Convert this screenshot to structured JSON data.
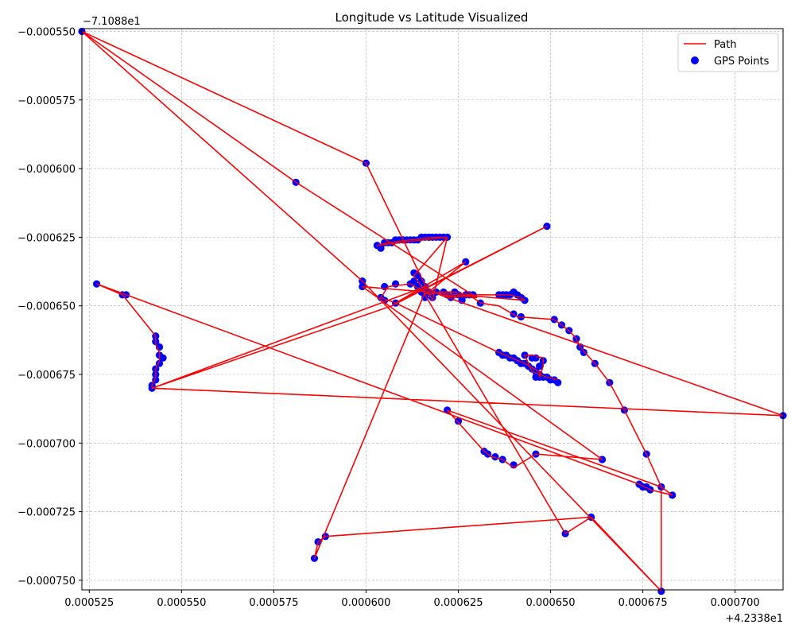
{
  "chart_data": {
    "type": "scatter",
    "title": "Longitude vs Latitude Visualized",
    "xlabel": "",
    "ylabel": "",
    "x_offset_label": "+4.2338e1",
    "y_offset_label": "−7.1088e1",
    "x_offset": 42.338,
    "y_offset": -71.088,
    "xlim": [
      0.000523,
      0.000713
    ],
    "ylim": [
      -0.0007535,
      -0.000549
    ],
    "x_ticks": [
      0.000525,
      0.00055,
      0.000575,
      0.0006,
      0.000625,
      0.00065,
      0.000675,
      0.0007
    ],
    "x_tick_labels": [
      "0.000525",
      "0.000550",
      "0.000575",
      "0.000600",
      "0.000625",
      "0.000650",
      "0.000675",
      "0.000700"
    ],
    "y_ticks": [
      -0.00055,
      -0.000575,
      -0.0006,
      -0.000625,
      -0.00065,
      -0.000675,
      -0.0007,
      -0.000725,
      -0.00075
    ],
    "y_tick_labels": [
      "−0.000550",
      "−0.000575",
      "−0.000600",
      "−0.000625",
      "−0.000650",
      "−0.000675",
      "−0.000700",
      "−0.000725",
      "−0.000750"
    ],
    "grid": true,
    "legend_position": "upper-right",
    "legend": [
      {
        "label": "Path",
        "kind": "line",
        "color": "#ff0000"
      },
      {
        "label": "GPS Points",
        "kind": "marker",
        "color": "#0000ff"
      }
    ],
    "series": [
      {
        "name": "Path",
        "color": "#ff0000",
        "points": [
          [
            0.000523,
            -0.00055
          ],
          [
            0.0006,
            -0.000598
          ],
          [
            0.000618,
            -0.000648
          ],
          [
            0.000622,
            -0.000625
          ],
          [
            0.000603,
            -0.000628
          ],
          [
            0.000606,
            -0.000627
          ],
          [
            0.000612,
            -0.000626
          ],
          [
            0.000618,
            -0.000625
          ],
          [
            0.000622,
            -0.000625
          ],
          [
            0.000613,
            -0.000639
          ],
          [
            0.000614,
            -0.000641
          ],
          [
            0.000615,
            -0.000643
          ],
          [
            0.000617,
            -0.000646
          ],
          [
            0.00062,
            -0.000645
          ],
          [
            0.000624,
            -0.000645
          ],
          [
            0.000628,
            -0.000646
          ],
          [
            0.000631,
            -0.000649
          ],
          [
            0.000636,
            -0.00065
          ],
          [
            0.000641,
            -0.000654
          ],
          [
            0.000651,
            -0.000655
          ],
          [
            0.000653,
            -0.000657
          ],
          [
            0.000655,
            -0.000659
          ],
          [
            0.000657,
            -0.000662
          ],
          [
            0.000658,
            -0.000665
          ],
          [
            0.000662,
            -0.000671
          ],
          [
            0.000666,
            -0.000678
          ],
          [
            0.00067,
            -0.000688
          ],
          [
            0.000676,
            -0.000704
          ],
          [
            0.00068,
            -0.000716
          ],
          [
            0.000683,
            -0.000719
          ],
          [
            0.000677,
            -0.000717
          ],
          [
            0.000674,
            -0.000715
          ],
          [
            0.000527,
            -0.000642
          ],
          [
            0.000534,
            -0.000646
          ],
          [
            0.000543,
            -0.000661
          ],
          [
            0.000543,
            -0.000664
          ],
          [
            0.000544,
            -0.000667
          ],
          [
            0.000544,
            -0.00067
          ],
          [
            0.000543,
            -0.000673
          ],
          [
            0.000543,
            -0.000676
          ],
          [
            0.000542,
            -0.000679
          ],
          [
            0.000542,
            -0.00068
          ],
          [
            0.000616,
            -0.000643
          ],
          [
            0.00062,
            -0.000646
          ],
          [
            0.000624,
            -0.000647
          ],
          [
            0.000628,
            -0.000646
          ],
          [
            0.000636,
            -0.000646
          ],
          [
            0.000639,
            -0.000646
          ],
          [
            0.000642,
            -0.000647
          ],
          [
            0.000643,
            -0.000648
          ],
          [
            0.000599,
            -0.000643
          ],
          [
            0.000664,
            -0.000706
          ],
          [
            0.000646,
            -0.000704
          ],
          [
            0.00064,
            -0.000709
          ],
          [
            0.000637,
            -0.000706
          ],
          [
            0.000634,
            -0.000705
          ],
          [
            0.000632,
            -0.000703
          ],
          [
            0.000622,
            -0.000688
          ],
          [
            0.00068,
            -0.000716
          ],
          [
            0.00068,
            -0.000754
          ],
          [
            0.000661,
            -0.000727
          ],
          [
            0.000589,
            -0.000734
          ],
          [
            0.000587,
            -0.000736
          ],
          [
            0.000586,
            -0.000742
          ],
          [
            0.000616,
            -0.000645
          ],
          [
            0.000612,
            -0.000642
          ],
          [
            0.000606,
            -0.000643
          ],
          [
            0.000604,
            -0.000647
          ],
          [
            0.000608,
            -0.000649
          ],
          [
            0.000649,
            -0.000621
          ],
          [
            0.000607,
            -0.00065
          ],
          [
            0.000542,
            -0.00068
          ],
          [
            0.000713,
            -0.00069
          ],
          [
            0.00062,
            -0.000646
          ],
          [
            0.00063,
            -0.000647
          ],
          [
            0.000581,
            -0.000605
          ],
          [
            0.000523,
            -0.00055
          ],
          [
            0.000599,
            -0.000641
          ],
          [
            0.00068,
            -0.000754
          ],
          [
            0.000661,
            -0.000727
          ],
          [
            0.000654,
            -0.000733
          ],
          [
            0.000616,
            -0.000646
          ],
          [
            0.000627,
            -0.000634
          ],
          [
            0.000608,
            -0.000649
          ],
          [
            0.000636,
            -0.000667
          ],
          [
            0.000643,
            -0.000671
          ],
          [
            0.000647,
            -0.000674
          ],
          [
            0.000647,
            -0.000676
          ],
          [
            0.000648,
            -0.000672
          ],
          [
            0.000648,
            -0.000669
          ],
          [
            0.000645,
            -0.000668
          ],
          [
            0.000643,
            -0.000668
          ],
          [
            0.000645,
            -0.000674
          ],
          [
            0.000649,
            -0.000676
          ],
          [
            0.000652,
            -0.000677
          ]
        ]
      },
      {
        "name": "GPS Points",
        "color": "#0000ff",
        "points": [
          [
            0.000523,
            -0.00055
          ],
          [
            0.0006,
            -0.000598
          ],
          [
            0.000581,
            -0.000605
          ],
          [
            0.000649,
            -0.000621
          ],
          [
            0.000603,
            -0.000628
          ],
          [
            0.000604,
            -0.000629
          ],
          [
            0.000605,
            -0.000627
          ],
          [
            0.000606,
            -0.000627
          ],
          [
            0.000607,
            -0.000627
          ],
          [
            0.000608,
            -0.000626
          ],
          [
            0.000609,
            -0.000626
          ],
          [
            0.00061,
            -0.000626
          ],
          [
            0.000611,
            -0.000626
          ],
          [
            0.000612,
            -0.000626
          ],
          [
            0.000613,
            -0.000626
          ],
          [
            0.000614,
            -0.000626
          ],
          [
            0.000615,
            -0.000625
          ],
          [
            0.000616,
            -0.000625
          ],
          [
            0.000617,
            -0.000625
          ],
          [
            0.000618,
            -0.000625
          ],
          [
            0.000619,
            -0.000625
          ],
          [
            0.00062,
            -0.000625
          ],
          [
            0.000621,
            -0.000625
          ],
          [
            0.000622,
            -0.000625
          ],
          [
            0.000627,
            -0.000634
          ],
          [
            0.000613,
            -0.000638
          ],
          [
            0.000614,
            -0.000639
          ],
          [
            0.000613,
            -0.000641
          ],
          [
            0.000615,
            -0.000641
          ],
          [
            0.000614,
            -0.000643
          ],
          [
            0.000616,
            -0.000643
          ],
          [
            0.000615,
            -0.000645
          ],
          [
            0.000617,
            -0.000645
          ],
          [
            0.000616,
            -0.000647
          ],
          [
            0.000618,
            -0.000647
          ],
          [
            0.000599,
            -0.000641
          ],
          [
            0.000599,
            -0.000643
          ],
          [
            0.000605,
            -0.000643
          ],
          [
            0.000608,
            -0.000642
          ],
          [
            0.000612,
            -0.000642
          ],
          [
            0.000604,
            -0.000647
          ],
          [
            0.000605,
            -0.000648
          ],
          [
            0.000608,
            -0.000649
          ],
          [
            0.000619,
            -0.000645
          ],
          [
            0.000621,
            -0.000645
          ],
          [
            0.000622,
            -0.000646
          ],
          [
            0.000623,
            -0.000647
          ],
          [
            0.000624,
            -0.000645
          ],
          [
            0.000625,
            -0.000646
          ],
          [
            0.000626,
            -0.000648
          ],
          [
            0.000627,
            -0.000646
          ],
          [
            0.000628,
            -0.000646
          ],
          [
            0.000629,
            -0.000646
          ],
          [
            0.000631,
            -0.000649
          ],
          [
            0.000636,
            -0.000646
          ],
          [
            0.000637,
            -0.000646
          ],
          [
            0.000638,
            -0.000646
          ],
          [
            0.000639,
            -0.000646
          ],
          [
            0.00064,
            -0.000645
          ],
          [
            0.000641,
            -0.000646
          ],
          [
            0.000642,
            -0.000647
          ],
          [
            0.000643,
            -0.000648
          ],
          [
            0.00064,
            -0.000653
          ],
          [
            0.000642,
            -0.000654
          ],
          [
            0.000651,
            -0.000655
          ],
          [
            0.000653,
            -0.000657
          ],
          [
            0.000655,
            -0.000659
          ],
          [
            0.000657,
            -0.000662
          ],
          [
            0.000658,
            -0.000665
          ],
          [
            0.000659,
            -0.000667
          ],
          [
            0.000662,
            -0.000671
          ],
          [
            0.000666,
            -0.000678
          ],
          [
            0.00067,
            -0.000688
          ],
          [
            0.000713,
            -0.00069
          ],
          [
            0.000676,
            -0.000704
          ],
          [
            0.000674,
            -0.000715
          ],
          [
            0.000675,
            -0.000716
          ],
          [
            0.000676,
            -0.000716
          ],
          [
            0.000677,
            -0.000717
          ],
          [
            0.00068,
            -0.000716
          ],
          [
            0.000683,
            -0.000719
          ],
          [
            0.000527,
            -0.000642
          ],
          [
            0.000534,
            -0.000646
          ],
          [
            0.000535,
            -0.000646
          ],
          [
            0.000543,
            -0.000661
          ],
          [
            0.000543,
            -0.000663
          ],
          [
            0.000544,
            -0.000665
          ],
          [
            0.000544,
            -0.000668
          ],
          [
            0.000545,
            -0.000669
          ],
          [
            0.000544,
            -0.000671
          ],
          [
            0.000543,
            -0.000673
          ],
          [
            0.000543,
            -0.000675
          ],
          [
            0.000543,
            -0.000677
          ],
          [
            0.000542,
            -0.000679
          ],
          [
            0.000542,
            -0.00068
          ],
          [
            0.000636,
            -0.000667
          ],
          [
            0.000637,
            -0.000668
          ],
          [
            0.000638,
            -0.000668
          ],
          [
            0.000639,
            -0.000669
          ],
          [
            0.00064,
            -0.000669
          ],
          [
            0.000641,
            -0.00067
          ],
          [
            0.000642,
            -0.000671
          ],
          [
            0.000643,
            -0.000671
          ],
          [
            0.000644,
            -0.000672
          ],
          [
            0.000645,
            -0.000673
          ],
          [
            0.000646,
            -0.000674
          ],
          [
            0.000647,
            -0.000675
          ],
          [
            0.000648,
            -0.000676
          ],
          [
            0.000649,
            -0.000676
          ],
          [
            0.00065,
            -0.000677
          ],
          [
            0.000651,
            -0.000677
          ],
          [
            0.000652,
            -0.000678
          ],
          [
            0.000643,
            -0.000668
          ],
          [
            0.000645,
            -0.000669
          ],
          [
            0.000646,
            -0.000669
          ],
          [
            0.000648,
            -0.00067
          ],
          [
            0.000647,
            -0.000672
          ],
          [
            0.000646,
            -0.000676
          ],
          [
            0.000647,
            -0.000676
          ],
          [
            0.000622,
            -0.000688
          ],
          [
            0.000625,
            -0.000692
          ],
          [
            0.000632,
            -0.000703
          ],
          [
            0.000633,
            -0.000704
          ],
          [
            0.000635,
            -0.000705
          ],
          [
            0.000637,
            -0.000706
          ],
          [
            0.00064,
            -0.000708
          ],
          [
            0.000646,
            -0.000704
          ],
          [
            0.000664,
            -0.000706
          ],
          [
            0.000661,
            -0.000727
          ],
          [
            0.000654,
            -0.000733
          ],
          [
            0.000589,
            -0.000734
          ],
          [
            0.000587,
            -0.000736
          ],
          [
            0.000586,
            -0.000742
          ],
          [
            0.00068,
            -0.000754
          ]
        ]
      }
    ]
  }
}
